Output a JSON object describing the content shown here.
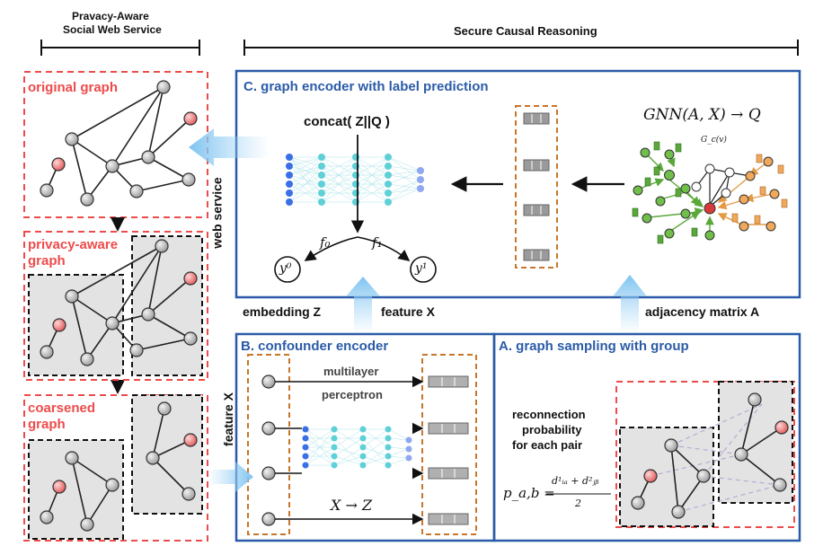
{
  "left_header": {
    "line1": "Pravacy-Aware",
    "line2": "Social Web Service"
  },
  "right_header": "Secure Causal Reasoning",
  "left_panels": {
    "original": "original graph",
    "privacy_line1": "privacy-aware",
    "privacy_line2": "graph",
    "coarsened_line1": "coarsened",
    "coarsened_line2": "graph"
  },
  "side_labels": {
    "web_service": "web service",
    "feature": "feature X"
  },
  "panel_c": {
    "title": "C. graph encoder with label prediction",
    "concat": "concat( Z||Q )",
    "gnn": "GNN(A, X) → Q",
    "gcv": "G_c(v)",
    "f0": "f₀",
    "f1": "f₁",
    "y0": "y⁰",
    "y1": "y¹"
  },
  "bottom_labels": {
    "embedding": "embedding Z",
    "feature": "feature X",
    "adjacency": "adjacency matrix A"
  },
  "panel_b": {
    "title": "B. confounder encoder",
    "mlp_line1": "multilayer",
    "mlp_line2": "perceptron",
    "xz": "X → Z"
  },
  "panel_a": {
    "title": "A. graph sampling with group",
    "reconn_line1": "reconnection",
    "reconn_line2": "probability",
    "reconn_line3": "for each pair",
    "formula_lhs": "p_a,b =",
    "formula_num": "d¹ᵢₐ + d²ⱼᵦ",
    "formula_den": "2"
  },
  "colors": {
    "red_dash": "#ee4b4b",
    "blue_frame": "#2b5ba8",
    "orange_dash": "#c8762a",
    "node_gray": "#b8b8b8",
    "node_red": "#ef7f7f",
    "green_node": "#6fbf4a",
    "orange_node": "#f0a85a",
    "nn_blue": "#3a6fe6",
    "nn_cyan": "#5fd0d8",
    "arrow_light_blue": "#7ec3f0"
  }
}
